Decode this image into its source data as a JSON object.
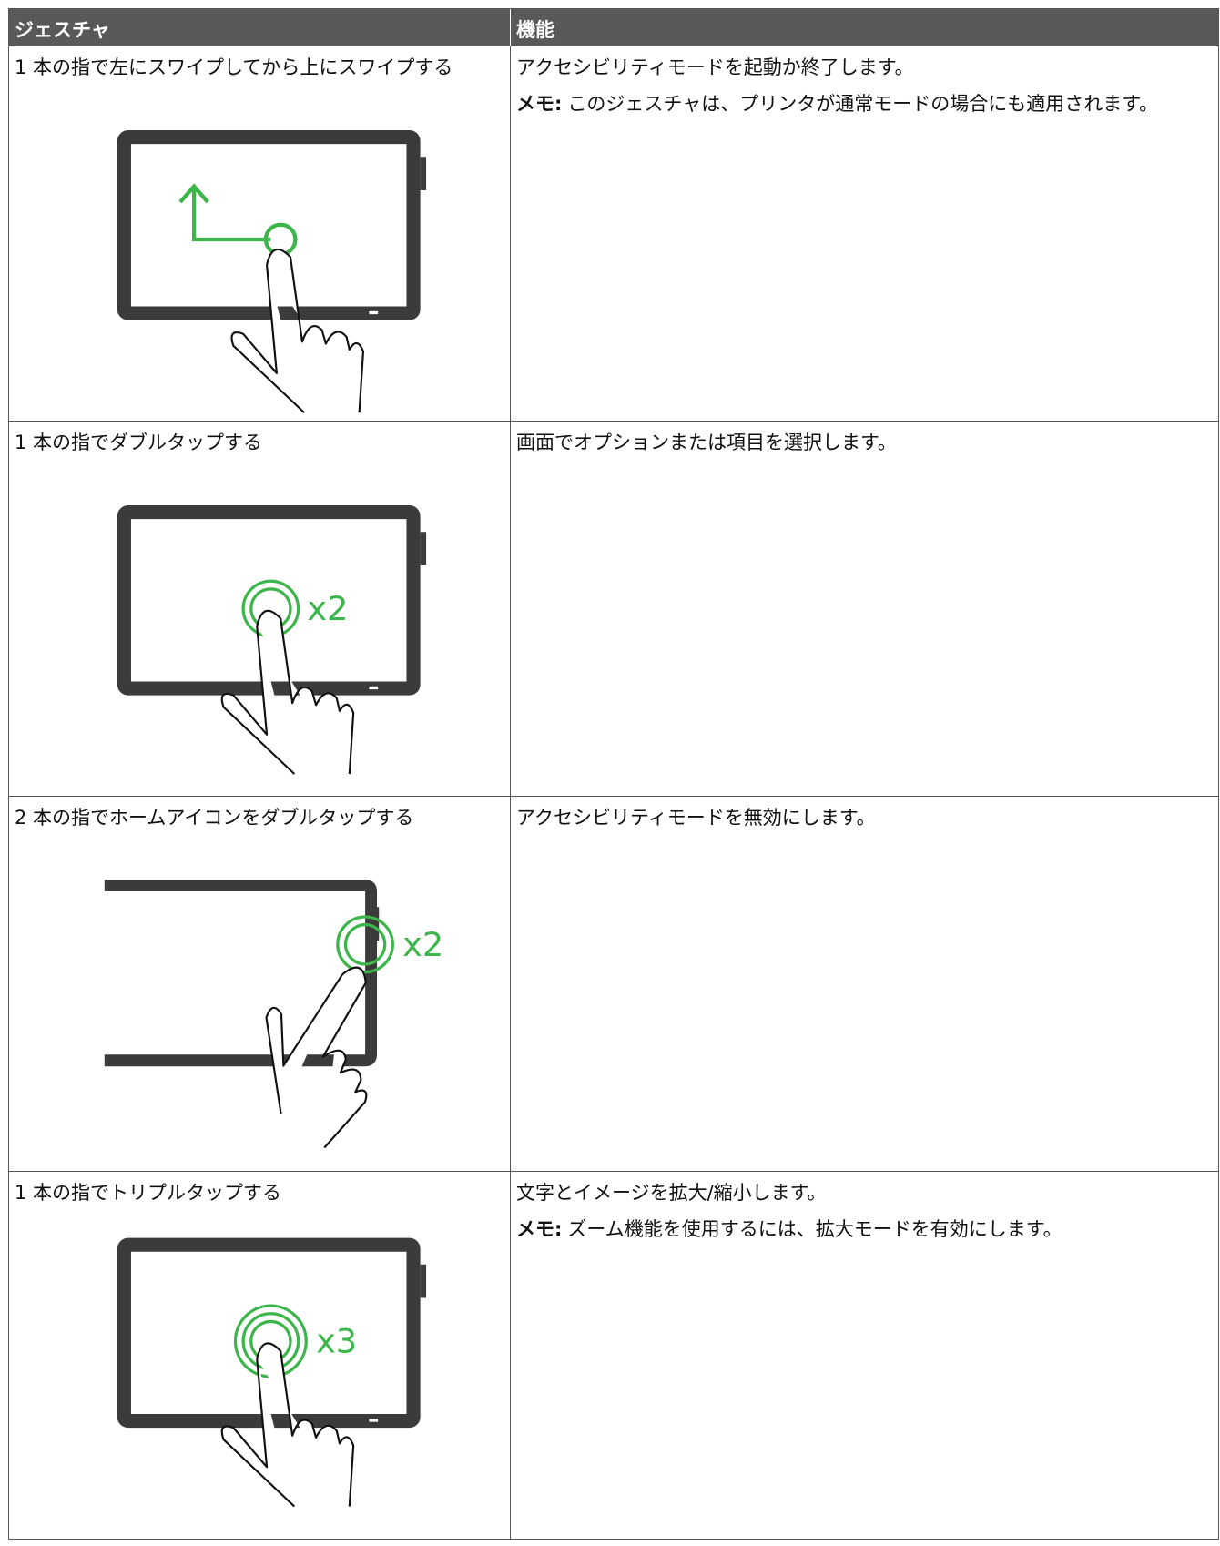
{
  "table": {
    "headers": [
      "ジェスチャ",
      "機能"
    ],
    "rows": [
      {
        "gesture": "1 本の指で左にスワイプしてから上にスワイプする",
        "function": "アクセシビリティモードを起動か終了します。",
        "note": {
          "label": "メモ:",
          "text": "このジェスチャは、プリンタが通常モードの場合にも適用されます。"
        }
      },
      {
        "gesture": "1 本の指でダブルタップする",
        "function": "画面でオプションまたは項目を選択します。",
        "illustration_label": "x2"
      },
      {
        "gesture": "2 本の指でホームアイコンをダブルタップする",
        "function": "アクセシビリティモードを無効にします。",
        "illustration_label": "x2"
      },
      {
        "gesture": "1 本の指でトリプルタップする",
        "function": "文字とイメージを拡大/縮小します。",
        "note": {
          "label": "メモ:",
          "text": "ズーム機能を使用するには、拡大モードを有効にします。"
        },
        "illustration_label": "x3"
      }
    ]
  }
}
